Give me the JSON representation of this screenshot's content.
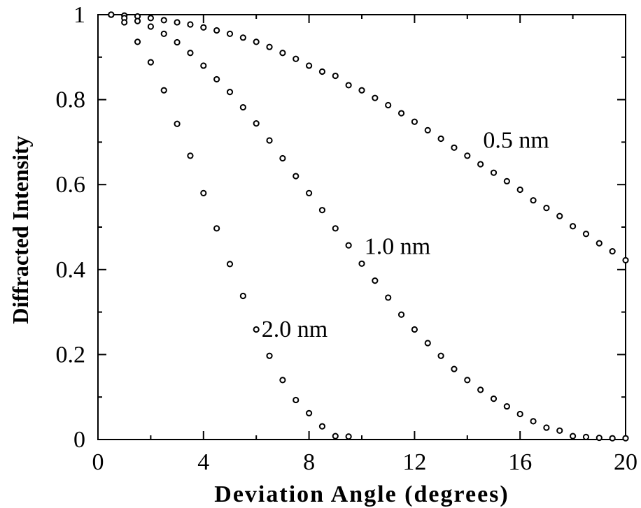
{
  "chart_data": {
    "type": "scatter",
    "title": "",
    "xlabel": "Deviation Angle (degrees)",
    "ylabel": "Diffracted Intensity",
    "xlim": [
      0,
      20
    ],
    "ylim": [
      0,
      1
    ],
    "xticks": [
      "0",
      "4",
      "8",
      "12",
      "16",
      "20"
    ],
    "yticks": [
      "0",
      "0.2",
      "0.4",
      "0.6",
      "0.8",
      "1"
    ],
    "grid": false,
    "legend": "none",
    "marker": "open-circle",
    "series": [
      {
        "name": "0.5 nm",
        "x": [
          0.5,
          1.0,
          1.5,
          2.0,
          2.5,
          3.0,
          3.5,
          4.0,
          4.5,
          5.0,
          5.5,
          6.0,
          6.5,
          7.0,
          7.5,
          8.0,
          8.5,
          9.0,
          9.5,
          10.0,
          10.5,
          11.0,
          11.5,
          12.0,
          12.5,
          13.0,
          13.5,
          14.0,
          14.5,
          15.0,
          15.5,
          16.0,
          16.5,
          17.0,
          17.5,
          18.0,
          18.5,
          19.0,
          19.5,
          20.0
        ],
        "y": [
          1.0,
          0.998,
          0.996,
          0.992,
          0.987,
          0.982,
          0.977,
          0.97,
          0.963,
          0.955,
          0.946,
          0.936,
          0.924,
          0.91,
          0.896,
          0.88,
          0.866,
          0.856,
          0.834,
          0.822,
          0.804,
          0.787,
          0.768,
          0.748,
          0.728,
          0.708,
          0.687,
          0.668,
          0.648,
          0.628,
          0.608,
          0.588,
          0.563,
          0.545,
          0.526,
          0.502,
          0.484,
          0.462,
          0.443,
          0.422
        ]
      },
      {
        "name": "1.0 nm",
        "x": [
          0.5,
          1.0,
          1.5,
          2.0,
          2.5,
          3.0,
          3.5,
          4.0,
          4.5,
          5.0,
          5.5,
          6.0,
          6.5,
          7.0,
          7.5,
          8.0,
          8.5,
          9.0,
          9.5,
          10.0,
          10.5,
          11.0,
          11.5,
          12.0,
          12.5,
          13.0,
          13.5,
          14.0,
          14.5,
          15.0,
          15.5,
          16.0,
          16.5,
          17.0,
          17.5,
          18.0,
          18.5,
          19.0,
          19.5,
          20.0
        ],
        "y": [
          1.0,
          0.992,
          0.985,
          0.972,
          0.955,
          0.935,
          0.91,
          0.88,
          0.848,
          0.818,
          0.782,
          0.744,
          0.704,
          0.662,
          0.62,
          0.58,
          0.54,
          0.497,
          0.457,
          0.414,
          0.374,
          0.334,
          0.294,
          0.259,
          0.227,
          0.197,
          0.166,
          0.14,
          0.117,
          0.096,
          0.078,
          0.06,
          0.043,
          0.028,
          0.021,
          0.008,
          0.006,
          0.004,
          0.003,
          0.003
        ]
      },
      {
        "name": "2.0 nm",
        "x": [
          0.5,
          1.0,
          1.5,
          2.0,
          2.5,
          3.0,
          3.5,
          4.0,
          4.5,
          5.0,
          5.5,
          6.0,
          6.5,
          7.0,
          7.5,
          8.0,
          8.5,
          9.0,
          9.5
        ],
        "y": [
          1.0,
          0.982,
          0.936,
          0.888,
          0.822,
          0.743,
          0.668,
          0.58,
          0.497,
          0.413,
          0.338,
          0.259,
          0.197,
          0.14,
          0.093,
          0.062,
          0.031,
          0.008,
          0.007
        ]
      }
    ]
  }
}
